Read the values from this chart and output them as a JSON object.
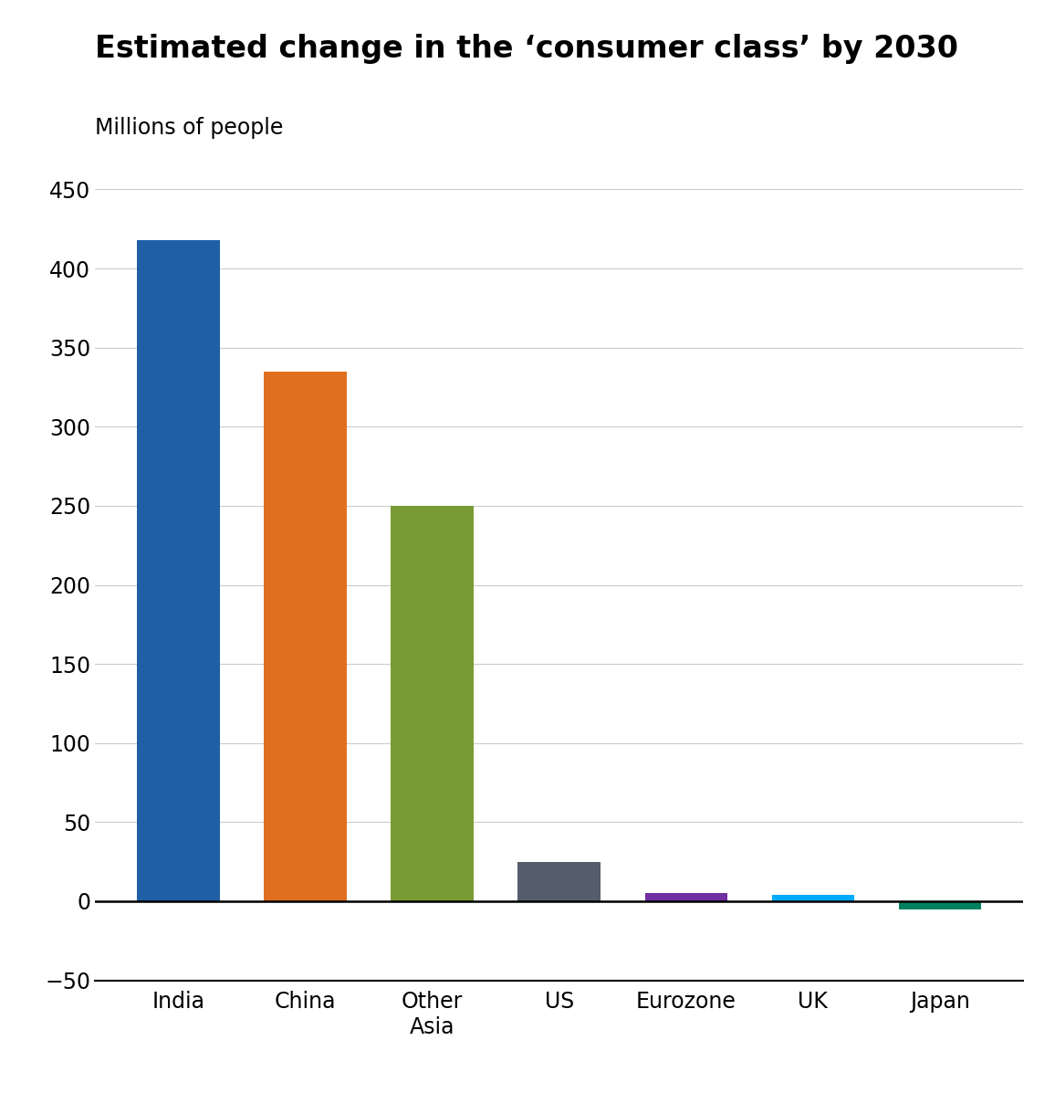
{
  "title": "Estimated change in the ‘consumer class’ by 2030",
  "subtitle": "Millions of people",
  "categories": [
    "India",
    "China",
    "Other\nAsia",
    "US",
    "Eurozone",
    "UK",
    "Japan"
  ],
  "values": [
    418,
    335,
    250,
    25,
    5,
    4,
    -5
  ],
  "bar_colors": [
    "#1f5fa6",
    "#e07020",
    "#7a9a35",
    "#555d6b",
    "#7030a0",
    "#00aaff",
    "#008060"
  ],
  "ylim": [
    -50,
    450
  ],
  "yticks": [
    -50,
    0,
    50,
    100,
    150,
    200,
    250,
    300,
    350,
    400,
    450
  ],
  "background_color": "#ffffff",
  "title_fontsize": 24,
  "subtitle_fontsize": 17,
  "tick_fontsize": 17,
  "grid_color": "#cccccc",
  "bar_width": 0.65
}
